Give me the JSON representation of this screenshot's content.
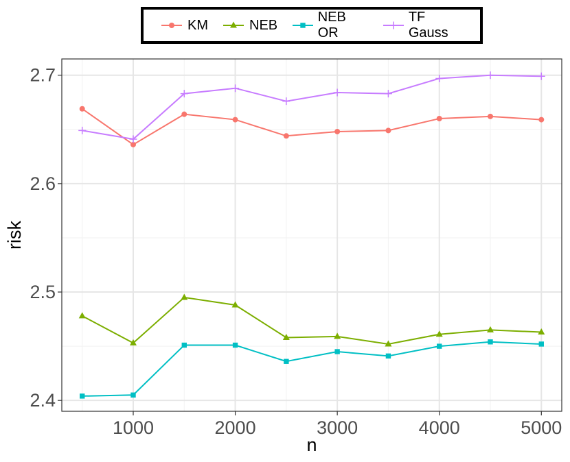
{
  "chart_data": {
    "type": "line",
    "xlabel": "n",
    "ylabel": "risk",
    "x": [
      500,
      1000,
      1500,
      2000,
      2500,
      3000,
      3500,
      4000,
      4500,
      5000
    ],
    "xlim": [
      300,
      5200
    ],
    "ylim": [
      2.39,
      2.715
    ],
    "xticks": [
      1000,
      2000,
      3000,
      4000,
      5000
    ],
    "xtick_labels": [
      "1000",
      "2000",
      "3000",
      "4000",
      "5000"
    ],
    "yticks": [
      2.4,
      2.5,
      2.6,
      2.7
    ],
    "ytick_labels": [
      "2.4",
      "2.5",
      "2.6",
      "2.7"
    ],
    "grid": true,
    "legend_position": "top",
    "series": [
      {
        "name": "KM",
        "color": "#F8766D",
        "marker": "circle",
        "values": [
          2.669,
          2.636,
          2.664,
          2.659,
          2.644,
          2.648,
          2.649,
          2.66,
          2.662,
          2.659
        ]
      },
      {
        "name": "NEB",
        "color": "#7CAE00",
        "marker": "triangle",
        "values": [
          2.478,
          2.453,
          2.495,
          2.488,
          2.458,
          2.459,
          2.452,
          2.461,
          2.465,
          2.463
        ]
      },
      {
        "name": "NEB OR",
        "color": "#00BFC4",
        "marker": "square",
        "values": [
          2.404,
          2.405,
          2.451,
          2.451,
          2.436,
          2.445,
          2.441,
          2.45,
          2.454,
          2.452
        ]
      },
      {
        "name": "TF Gauss",
        "color": "#C77CFF",
        "marker": "plus",
        "values": [
          2.649,
          2.641,
          2.683,
          2.688,
          2.676,
          2.684,
          2.683,
          2.697,
          2.7,
          2.699
        ]
      }
    ]
  }
}
